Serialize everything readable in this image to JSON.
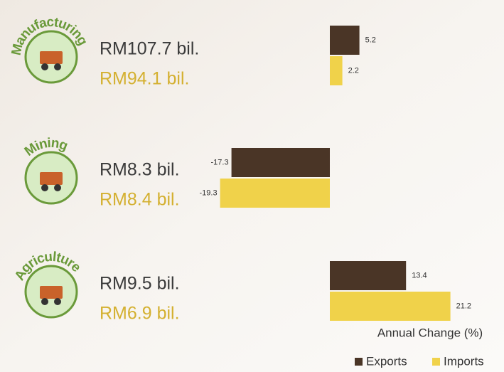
{
  "chart_data": {
    "type": "bar",
    "orientation": "horizontal",
    "categories": [
      "Manufacturing",
      "Mining",
      "Agriculture"
    ],
    "series": [
      {
        "name": "Exports",
        "color": "#4a3526",
        "values": [
          5.2,
          -17.3,
          13.4
        ],
        "amount_labels": [
          "RM107.7 bil.",
          "RM8.3 bil.",
          "RM9.5 bil."
        ],
        "amount_color": "#3a3a3a"
      },
      {
        "name": "Imports",
        "color": "#f0d24a",
        "values": [
          2.2,
          -19.3,
          21.2
        ],
        "amount_labels": [
          "RM94.1 bil.",
          "RM8.4 bil.",
          "RM6.9 bil."
        ],
        "amount_color": "#d4b030"
      }
    ],
    "xlim": [
      -20,
      25
    ],
    "legend_title": "Annual Change (%)",
    "legend": "bottom-right"
  }
}
